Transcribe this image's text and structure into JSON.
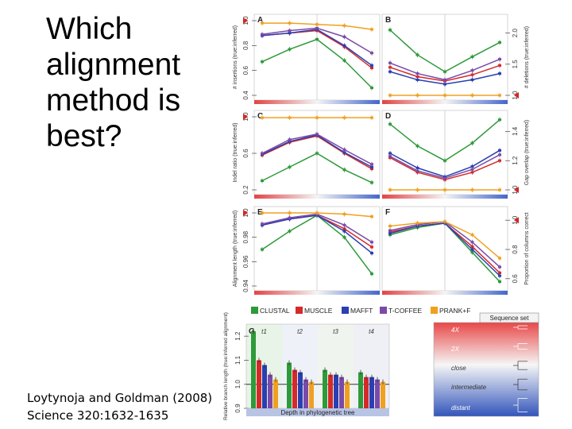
{
  "slide": {
    "title_lines": [
      "Which",
      "alignment",
      "method is",
      "best?"
    ],
    "citation_lines": [
      "Loytynoja and Goldman (2008)",
      " Science 320:1632-1635"
    ]
  },
  "colors": {
    "CLUSTAL": "#2e9a3a",
    "MUSCLE": "#d42a2a",
    "MAFFT": "#2a3fb0",
    "T-COFFEE": "#7a4aa8",
    "PRANK": "#f0a020"
  },
  "legend": [
    "CLUSTAL",
    "MUSCLE",
    "MAFFT",
    "T-COFFEE",
    "PRANK+F"
  ],
  "chart_data": [
    {
      "type": "line",
      "panel": "A",
      "ylabel": "# insertions (true:inferred)",
      "yticks": [
        "0.4",
        "0.6",
        "0.8",
        "1.0"
      ],
      "ylim": [
        0.4,
        1.0
      ],
      "x": [
        1,
        2,
        3,
        4,
        5
      ],
      "series": [
        {
          "name": "CLUSTAL",
          "values": [
            0.67,
            0.77,
            0.85,
            0.68,
            0.46
          ]
        },
        {
          "name": "MUSCLE",
          "values": [
            0.88,
            0.9,
            0.92,
            0.79,
            0.62
          ]
        },
        {
          "name": "MAFFT",
          "values": [
            0.88,
            0.9,
            0.93,
            0.8,
            0.64
          ]
        },
        {
          "name": "T-COFFEE",
          "values": [
            0.89,
            0.92,
            0.94,
            0.87,
            0.74
          ]
        },
        {
          "name": "PRANK+F",
          "values": [
            0.98,
            0.98,
            0.97,
            0.96,
            0.93
          ]
        }
      ]
    },
    {
      "type": "line",
      "panel": "B",
      "ylabel": "# deletions (true:inferred)",
      "yticks": [
        "1.0",
        "1.5",
        "2.0"
      ],
      "ylim": [
        1.0,
        2.2
      ],
      "x": [
        1,
        2,
        3,
        4,
        5
      ],
      "series": [
        {
          "name": "CLUSTAL",
          "values": [
            2.05,
            1.65,
            1.38,
            1.62,
            1.85
          ]
        },
        {
          "name": "MUSCLE",
          "values": [
            1.45,
            1.3,
            1.23,
            1.33,
            1.48
          ]
        },
        {
          "name": "MAFFT",
          "values": [
            1.38,
            1.25,
            1.18,
            1.25,
            1.35
          ]
        },
        {
          "name": "T-COFFEE",
          "values": [
            1.52,
            1.35,
            1.25,
            1.4,
            1.58
          ]
        },
        {
          "name": "PRANK+F",
          "values": [
            1.0,
            1.0,
            1.0,
            1.0,
            1.0
          ]
        }
      ]
    },
    {
      "type": "line",
      "panel": "C",
      "ylabel": "Indel ratio (true:inferred)",
      "yticks": [
        "0.2",
        "0.6",
        "1.0"
      ],
      "ylim": [
        0.2,
        1.0
      ],
      "x": [
        1,
        2,
        3,
        4,
        5
      ],
      "series": [
        {
          "name": "CLUSTAL",
          "values": [
            0.3,
            0.45,
            0.6,
            0.42,
            0.28
          ]
        },
        {
          "name": "MUSCLE",
          "values": [
            0.58,
            0.72,
            0.79,
            0.6,
            0.43
          ]
        },
        {
          "name": "MAFFT",
          "values": [
            0.59,
            0.73,
            0.8,
            0.61,
            0.45
          ]
        },
        {
          "name": "T-COFFEE",
          "values": [
            0.6,
            0.75,
            0.81,
            0.64,
            0.48
          ]
        },
        {
          "name": "PRANK+F",
          "values": [
            0.99,
            0.99,
            0.99,
            0.99,
            0.99
          ]
        }
      ]
    },
    {
      "type": "line",
      "panel": "D",
      "ylabel": "Gap overlap (true:inferred)",
      "yticks": [
        "1.0",
        "1.2",
        "1.4"
      ],
      "ylim": [
        1.0,
        1.5
      ],
      "x": [
        1,
        2,
        3,
        4,
        5
      ],
      "series": [
        {
          "name": "CLUSTAL",
          "values": [
            1.45,
            1.3,
            1.2,
            1.32,
            1.48
          ]
        },
        {
          "name": "MUSCLE",
          "values": [
            1.22,
            1.12,
            1.07,
            1.12,
            1.2
          ]
        },
        {
          "name": "MAFFT",
          "values": [
            1.25,
            1.15,
            1.09,
            1.16,
            1.27
          ]
        },
        {
          "name": "T-COFFEE",
          "values": [
            1.23,
            1.13,
            1.08,
            1.14,
            1.24
          ]
        },
        {
          "name": "PRANK+F",
          "values": [
            1.0,
            1.0,
            1.0,
            1.0,
            1.0
          ]
        }
      ]
    },
    {
      "type": "line",
      "panel": "E",
      "ylabel": "Alignment length (true:inferred)",
      "yticks": [
        "0.94",
        "0.96",
        "0.98",
        "1.0"
      ],
      "ylim": [
        0.94,
        1.0
      ],
      "x": [
        1,
        2,
        3,
        4,
        5
      ],
      "series": [
        {
          "name": "CLUSTAL",
          "values": [
            0.97,
            0.985,
            0.998,
            0.98,
            0.95
          ]
        },
        {
          "name": "MUSCLE",
          "values": [
            0.99,
            0.995,
            0.998,
            0.987,
            0.972
          ]
        },
        {
          "name": "MAFFT",
          "values": [
            0.99,
            0.995,
            0.998,
            0.985,
            0.967
          ]
        },
        {
          "name": "T-COFFEE",
          "values": [
            0.991,
            0.996,
            0.999,
            0.99,
            0.976
          ]
        },
        {
          "name": "PRANK+F",
          "values": [
            1.0,
            1.0,
            1.0,
            0.999,
            0.997
          ]
        }
      ]
    },
    {
      "type": "line",
      "panel": "F",
      "ylabel": "Proportion of columns correct",
      "yticks": [
        "0.6",
        "0.8",
        "1.0"
      ],
      "ylim": [
        0.55,
        1.05
      ],
      "x": [
        1,
        2,
        3,
        4,
        5
      ],
      "series": [
        {
          "name": "CLUSTAL",
          "values": [
            0.9,
            0.95,
            0.98,
            0.78,
            0.58
          ]
        },
        {
          "name": "MUSCLE",
          "values": [
            0.92,
            0.96,
            0.98,
            0.82,
            0.64
          ]
        },
        {
          "name": "MAFFT",
          "values": [
            0.91,
            0.96,
            0.98,
            0.8,
            0.62
          ]
        },
        {
          "name": "T-COFFEE",
          "values": [
            0.93,
            0.97,
            0.99,
            0.85,
            0.68
          ]
        },
        {
          "name": "PRANK+F",
          "values": [
            0.96,
            0.98,
            0.99,
            0.9,
            0.74
          ]
        }
      ]
    },
    {
      "type": "bar",
      "panel": "G",
      "ylabel": "Relative branch length (true:inferred alignment)",
      "xlabel": "Depth in phylogenetic tree",
      "yticks": [
        "0.9",
        "1.0",
        "1.1",
        "1.2"
      ],
      "ylim": [
        0.9,
        1.25
      ],
      "categories": [
        "t1",
        "t2",
        "t3",
        "t4"
      ],
      "series": [
        {
          "name": "CLUSTAL",
          "values": [
            1.22,
            1.09,
            1.06,
            1.05
          ]
        },
        {
          "name": "MUSCLE",
          "values": [
            1.1,
            1.06,
            1.04,
            1.03
          ]
        },
        {
          "name": "MAFFT",
          "values": [
            1.08,
            1.05,
            1.04,
            1.03
          ]
        },
        {
          "name": "T-COFFEE",
          "values": [
            1.04,
            1.02,
            1.03,
            1.02
          ]
        },
        {
          "name": "PRANK+F",
          "values": [
            1.02,
            1.01,
            1.01,
            1.01
          ]
        }
      ]
    }
  ],
  "sequence_set": {
    "title": "Sequence set",
    "items": [
      "4X",
      "2X",
      "close",
      "intermediate",
      "distant"
    ]
  }
}
